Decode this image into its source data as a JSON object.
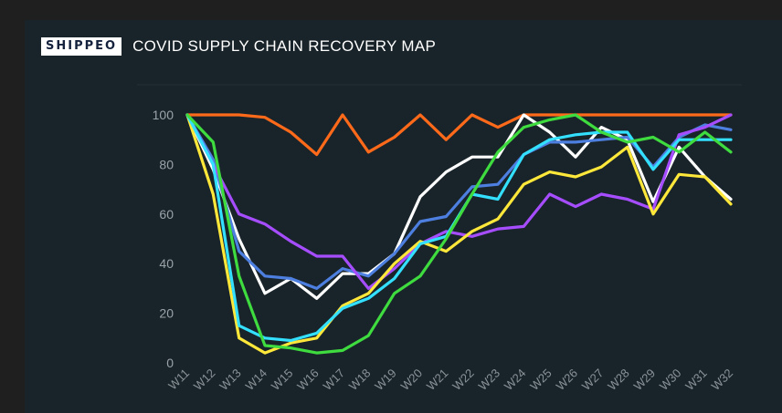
{
  "header": {
    "logo_text": "SHIPPEO",
    "title": "COVID SUPPLY CHAIN RECOVERY MAP"
  },
  "chart_data": {
    "type": "line",
    "title": "COVID SUPPLY CHAIN RECOVERY MAP",
    "xlabel": "",
    "ylabel": "",
    "ylim": [
      0,
      100
    ],
    "yticks": [
      "0",
      "20",
      "40",
      "60",
      "80",
      "100"
    ],
    "grid": false,
    "categories": [
      "W11",
      "W12",
      "W13",
      "W14",
      "W15",
      "W16",
      "W17",
      "W18",
      "W19",
      "W20",
      "W21",
      "W22",
      "W23",
      "W24",
      "W25",
      "W26",
      "W27",
      "W28",
      "W29",
      "W30",
      "W31",
      "W32"
    ],
    "series": [
      {
        "color": "#ff6a1a",
        "values": [
          100,
          100,
          100,
          99,
          93,
          84,
          100,
          85,
          91,
          100,
          90,
          100,
          95,
          100,
          100,
          100,
          100,
          100,
          100,
          100,
          100,
          100
        ]
      },
      {
        "color": "#ffffff",
        "values": [
          100,
          78,
          50,
          28,
          34,
          26,
          36,
          36,
          44,
          67,
          77,
          83,
          83,
          100,
          93,
          83,
          95,
          90,
          65,
          87,
          75,
          66
        ]
      },
      {
        "color": "#4d7fe0",
        "values": [
          100,
          82,
          45,
          35,
          34,
          30,
          38,
          35,
          44,
          57,
          59,
          71,
          72,
          84,
          89,
          89,
          90,
          91,
          79,
          91,
          96,
          94
        ]
      },
      {
        "color": "#a64dff",
        "values": [
          100,
          80,
          60,
          56,
          49,
          43,
          43,
          30,
          38,
          48,
          53,
          51,
          54,
          55,
          68,
          63,
          68,
          66,
          62,
          92,
          95,
          100
        ]
      },
      {
        "color": "#ffe83a",
        "values": [
          100,
          68,
          10,
          4,
          8,
          10,
          23,
          28,
          40,
          49,
          45,
          53,
          58,
          72,
          77,
          75,
          79,
          87,
          60,
          76,
          75,
          64
        ]
      },
      {
        "color": "#33e0ff",
        "values": [
          100,
          80,
          15,
          10,
          9,
          12,
          22,
          26,
          34,
          48,
          51,
          68,
          66,
          84,
          90,
          92,
          93,
          93,
          78,
          90,
          90,
          90
        ]
      },
      {
        "color": "#3fdc3f",
        "values": [
          100,
          89,
          35,
          7,
          6,
          4,
          5,
          11,
          28,
          35,
          50,
          68,
          85,
          95,
          98,
          100,
          93,
          89,
          91,
          85,
          93,
          85
        ]
      }
    ]
  }
}
